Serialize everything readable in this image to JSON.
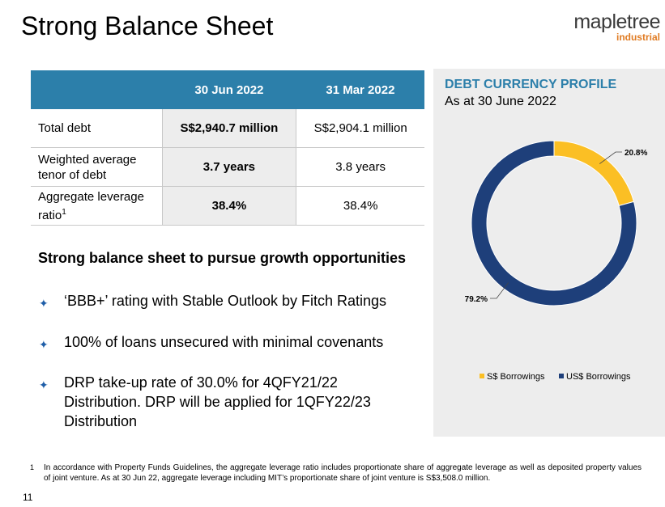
{
  "title": "Strong Balance Sheet",
  "logo": {
    "name": "mapletree",
    "sub": "industrial"
  },
  "table": {
    "headers": [
      "",
      "30 Jun 2022",
      "31 Mar 2022"
    ],
    "rows": [
      {
        "label": "Total debt",
        "sup": "",
        "current": "S$2,940.7 million",
        "previous": "S$2,904.1 million"
      },
      {
        "label": "Weighted average tenor of debt",
        "sup": "",
        "current": "3.7 years",
        "previous": "3.8 years"
      },
      {
        "label": "Aggregate leverage ratio",
        "sup": "1",
        "current": "38.4%",
        "previous": "38.4%"
      }
    ]
  },
  "subheading": "Strong balance sheet to pursue growth opportunities",
  "bullets": [
    "‘BBB+’ rating with Stable Outlook by Fitch Ratings",
    "100% of loans unsecured with minimal covenants",
    "DRP take-up rate of 30.0% for 4QFY21/22 Distribution.  DRP will be applied for 1QFY22/23 Distribution"
  ],
  "panel": {
    "title": "DEBT CURRENCY PROFILE",
    "subtitle": "As at 30 June 2022"
  },
  "chart_data": {
    "type": "pie",
    "subtype": "donut",
    "title": "DEBT CURRENCY PROFILE",
    "subtitle": "As at 30 June 2022",
    "categories": [
      "S$ Borrowings",
      "US$ Borrowings"
    ],
    "values": [
      20.8,
      79.2
    ],
    "labels": [
      "20.8%",
      "79.2%"
    ],
    "colors": [
      "#fbbf24",
      "#1e3f7a"
    ],
    "legend": "bottom"
  },
  "footnote": {
    "num": "1",
    "text": "In accordance with Property Funds Guidelines, the aggregate leverage ratio includes proportionate share of aggregate leverage as well as deposited property values of joint venture. As at 30 Jun 22, aggregate leverage including MIT’s proportionate share of joint venture is S$3,508.0 million."
  },
  "page_number": "11",
  "bullet_icon": "four-point-star-icon"
}
